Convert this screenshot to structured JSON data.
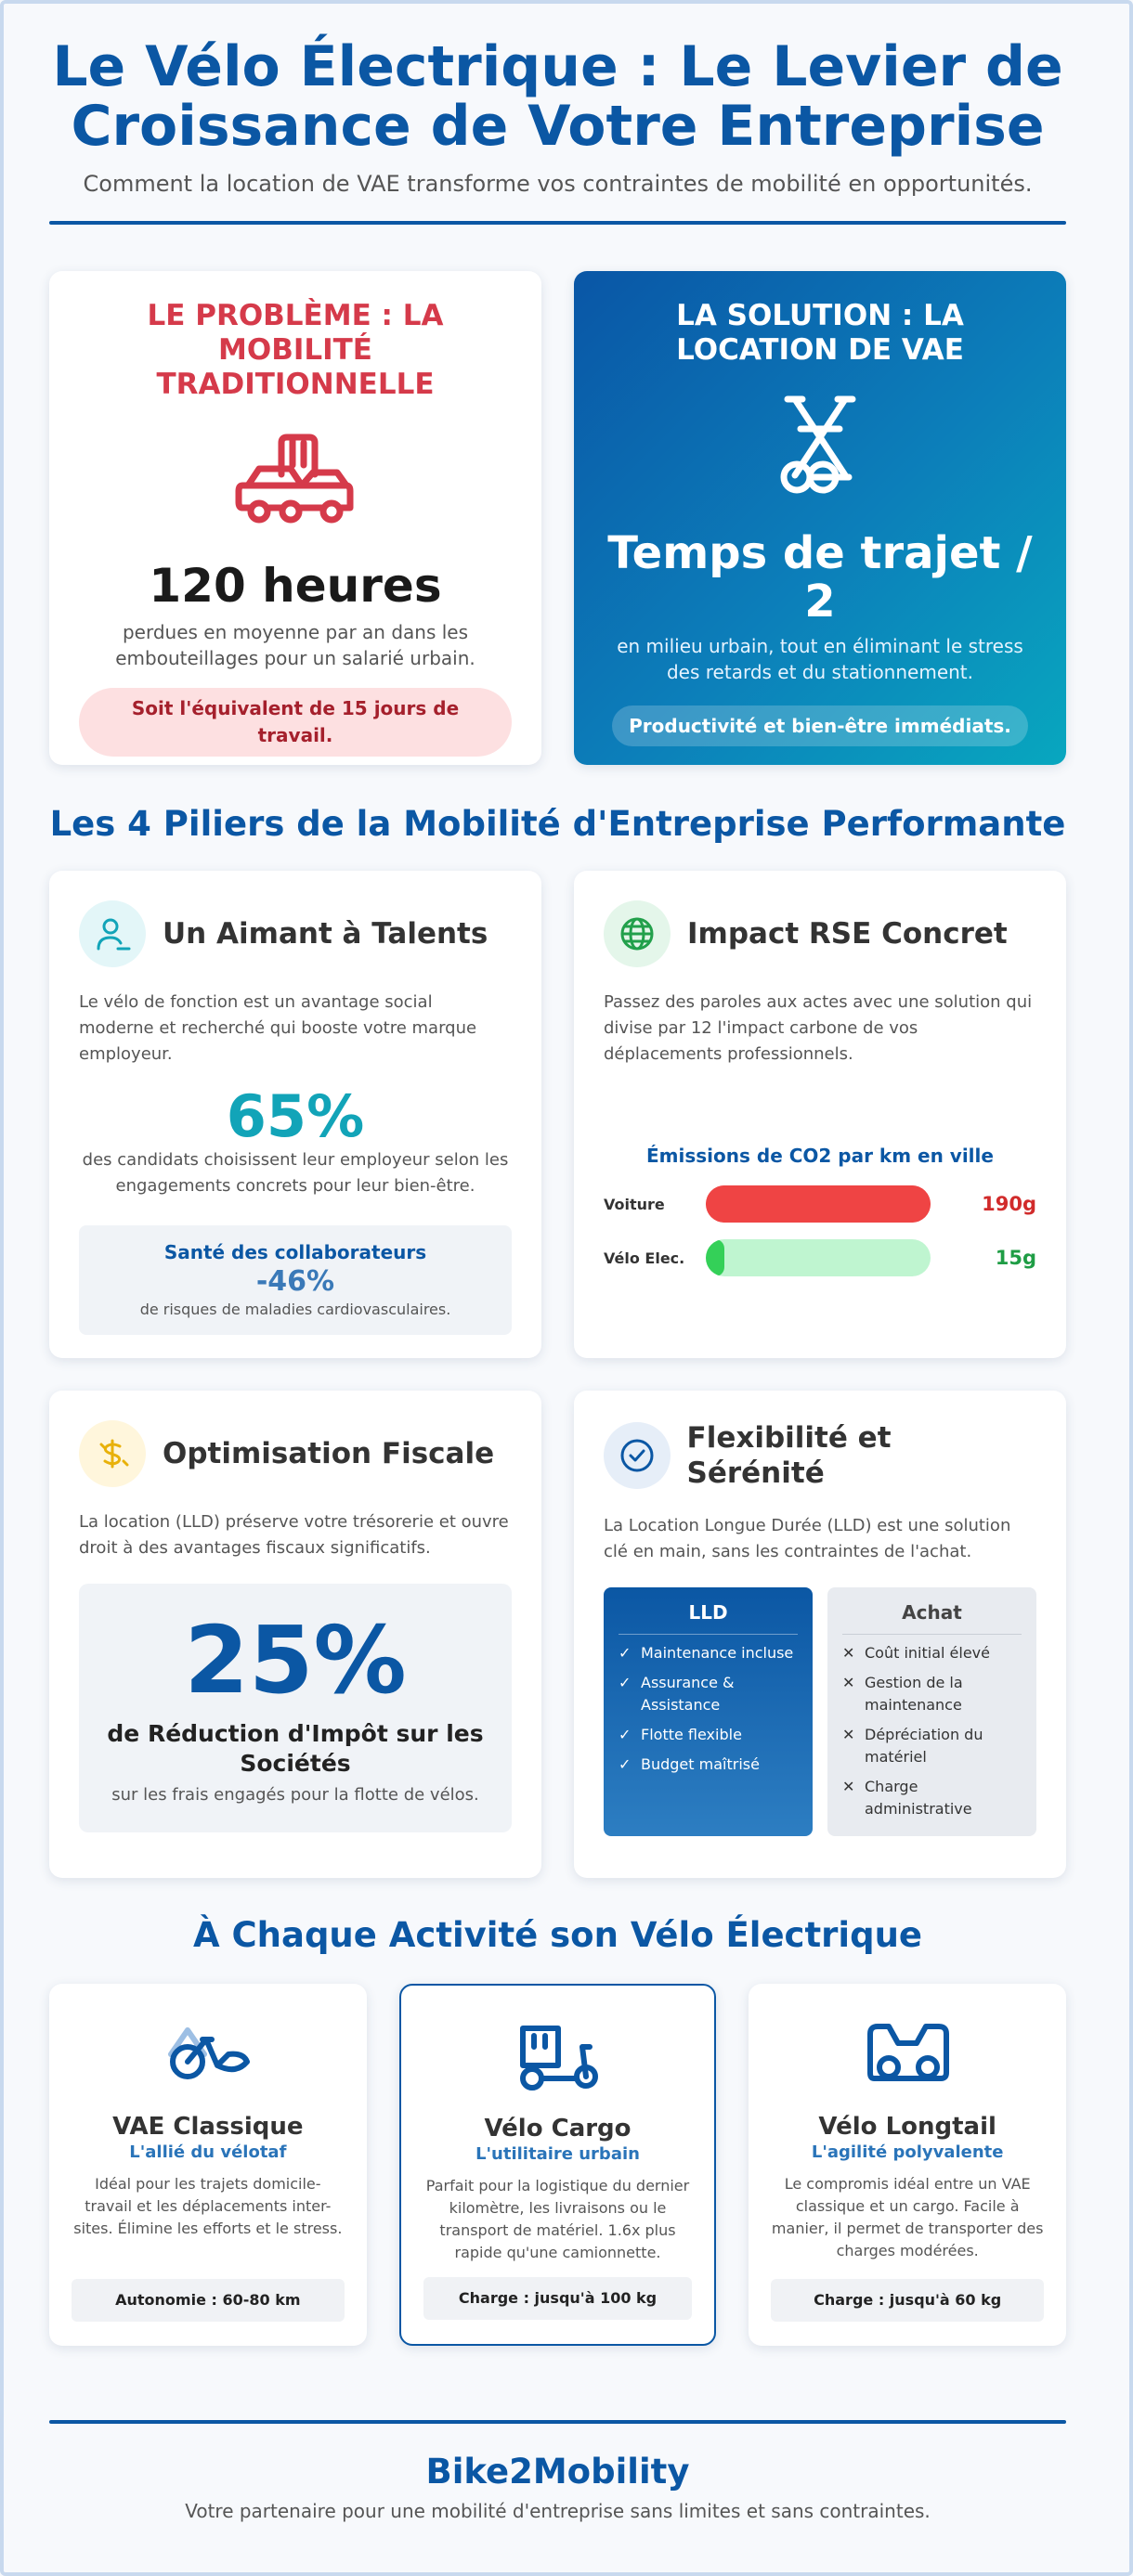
{
  "header": {
    "title": "Le Vélo Électrique : Le Levier de Croissance de Votre Entreprise",
    "subtitle": "Comment la location de VAE transforme vos contraintes de mobilité en opportunités."
  },
  "problem": {
    "heading": "LE PROBLÈME : LA MOBILITÉ TRADITIONNELLE",
    "icon": "car-traffic-icon",
    "stat": "120 heures",
    "text": "perdues en moyenne par an dans les embouteillages pour un salarié urbain.",
    "highlight": "Soit l'équivalent de 15 jours de travail.",
    "color": "#d53a4a"
  },
  "solution": {
    "heading": "LA SOLUTION : LA LOCATION DE VAE",
    "icon": "bicycle-icon",
    "stat": "Temps de trajet / 2",
    "text": "en milieu urbain, tout en éliminant le stress des retards et du stationnement.",
    "highlight": "Productivité et bien-être immédiats."
  },
  "pillars": {
    "title": "Les 4 Piliers de la Mobilité d'Entreprise Performante",
    "talents": {
      "title": "Un Aimant à Talents",
      "desc": "Le vélo de fonction est un avantage social moderne et recherché qui booste votre marque employeur.",
      "stat": "65%",
      "stat_text": "des candidats choisissent leur employeur selon les engagements concrets pour leur bien-être.",
      "health_title": "Santé des collaborateurs",
      "health_value": "-46%",
      "health_sub": "de risques de maladies cardiovasculaires."
    },
    "rse": {
      "title": "Impact RSE Concret",
      "desc": "Passez des paroles aux actes avec une solution qui divise par 12 l'impact carbone de vos déplacements professionnels.",
      "chart_title": "Émissions de CO2 par km en ville",
      "rows": [
        {
          "label": "Voiture",
          "value_text": "190g",
          "grams": 190,
          "color": "#ef4444",
          "text_color": "#d12b2b",
          "track": "#ef4444"
        },
        {
          "label": "Vélo Elec.",
          "value_text": "15g",
          "grams": 15,
          "color": "#34d058",
          "text_color": "#1f9d45",
          "track": "#bff5d0"
        }
      ]
    },
    "fiscal": {
      "title": "Optimisation Fiscale",
      "desc": "La location (LLD) préserve votre trésorerie et ouvre droit à des avantages fiscaux significatifs.",
      "stat": "25%",
      "label": "de Réduction d'Impôt sur les Sociétés",
      "sub": "sur les frais engagés pour la flotte de vélos."
    },
    "flex": {
      "title": "Flexibilité et Sérénité",
      "desc": "La Location Longue Durée (LLD) est une solution clé en main, sans les contraintes de l'achat.",
      "lld_title": "LLD",
      "lld_items": [
        "Maintenance incluse",
        "Assurance & Assistance",
        "Flotte flexible",
        "Budget maîtrisé"
      ],
      "achat_title": "Achat",
      "achat_items": [
        "Coût initial élevé",
        "Gestion de la maintenance",
        "Dépréciation du matériel",
        "Charge administrative"
      ]
    }
  },
  "bikes": {
    "title": "À Chaque Activité son Vélo Électrique",
    "items": [
      {
        "name": "VAE Classique",
        "tag": "L'allié du vélotaf",
        "desc": "Idéal pour les trajets domicile-travail et les déplacements inter-sites. Élimine les efforts et le stress.",
        "spec": "Autonomie : 60-80 km",
        "icon": "bike-classic-icon"
      },
      {
        "name": "Vélo Cargo",
        "tag": "L'utilitaire urbain",
        "desc": "Parfait pour la logistique du dernier kilomètre, les livraisons ou le transport de matériel. 1.6x plus rapide qu'une camionnette.",
        "spec": "Charge : jusqu'à 100 kg",
        "icon": "cargo-bike-icon"
      },
      {
        "name": "Vélo Longtail",
        "tag": "L'agilité polyvalente",
        "desc": "Le compromis idéal entre un VAE classique et un cargo. Facile à manier, il permet de transporter des charges modérées.",
        "spec": "Charge : jusqu'à 60 kg",
        "icon": "longtail-bike-icon"
      }
    ]
  },
  "footer": {
    "brand": "Bike2Mobility",
    "tagline": "Votre partenaire pour une mobilité d'entreprise sans limites et sans contraintes."
  },
  "colors": {
    "primary": "#0b57a4",
    "teal": "#12a4b8",
    "red": "#d53a4a"
  }
}
